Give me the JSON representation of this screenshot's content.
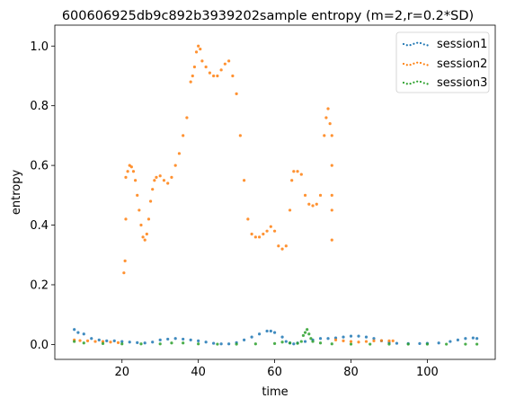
{
  "chart_data": {
    "type": "scatter",
    "title": "600606925db9c892b3939202sample entropy (m=2,r=0.2*SD)",
    "xlabel": "time",
    "ylabel": "entropy",
    "xlim": [
      2.4,
      117.8
    ],
    "ylim": [
      -0.05,
      1.07
    ],
    "xticks": [
      20,
      40,
      60,
      80,
      100
    ],
    "yticks": [
      0.0,
      0.2,
      0.4,
      0.6,
      0.8,
      1.0
    ],
    "xtick_labels": [
      "20",
      "40",
      "60",
      "80",
      "100"
    ],
    "ytick_labels": [
      "0.0",
      "0.2",
      "0.4",
      "0.6",
      "0.8",
      "1.0"
    ],
    "grid": false,
    "legend_position": "top-right",
    "series": [
      {
        "name": "session1",
        "color": "#1f77b4",
        "points": [
          [
            7.5,
            0.05
          ],
          [
            8.5,
            0.04
          ],
          [
            10,
            0.035
          ],
          [
            12,
            0.02
          ],
          [
            14,
            0.015
          ],
          [
            16,
            0.012
          ],
          [
            18,
            0.012
          ],
          [
            20,
            0.01
          ],
          [
            22,
            0.008
          ],
          [
            24,
            0.006
          ],
          [
            26,
            0.005
          ],
          [
            28,
            0.008
          ],
          [
            30,
            0.015
          ],
          [
            32,
            0.018
          ],
          [
            34,
            0.02
          ],
          [
            36,
            0.018
          ],
          [
            38,
            0.015
          ],
          [
            40,
            0.012
          ],
          [
            42,
            0.008
          ],
          [
            44,
            0.004
          ],
          [
            46,
            0.002
          ],
          [
            48,
            0.002
          ],
          [
            50,
            0.006
          ],
          [
            52,
            0.015
          ],
          [
            54,
            0.025
          ],
          [
            56,
            0.035
          ],
          [
            58,
            0.045
          ],
          [
            59,
            0.045
          ],
          [
            60,
            0.04
          ],
          [
            62,
            0.025
          ],
          [
            63,
            0.01
          ],
          [
            64,
            0.005
          ],
          [
            65,
            0.002
          ],
          [
            66,
            0.005
          ],
          [
            68,
            0.01
          ],
          [
            70,
            0.015
          ],
          [
            72,
            0.02
          ],
          [
            74,
            0.02
          ],
          [
            76,
            0.022
          ],
          [
            78,
            0.025
          ],
          [
            80,
            0.028
          ],
          [
            82,
            0.028
          ],
          [
            84,
            0.025
          ],
          [
            86,
            0.02
          ],
          [
            88,
            0.012
          ],
          [
            90,
            0.006
          ],
          [
            92,
            0.004
          ],
          [
            95,
            0.003
          ],
          [
            98,
            0.003
          ],
          [
            100,
            0.004
          ],
          [
            103,
            0.005
          ],
          [
            106,
            0.01
          ],
          [
            108,
            0.015
          ],
          [
            110,
            0.02
          ],
          [
            112,
            0.022
          ],
          [
            113,
            0.02
          ]
        ]
      },
      {
        "name": "session2",
        "color": "#ff7f0e",
        "points": [
          [
            7.5,
            0.015
          ],
          [
            9,
            0.013
          ],
          [
            11,
            0.012
          ],
          [
            13,
            0.01
          ],
          [
            15,
            0.01
          ],
          [
            17,
            0.008
          ],
          [
            19,
            0.006
          ],
          [
            20.5,
            0.24
          ],
          [
            20.8,
            0.28
          ],
          [
            21,
            0.42
          ],
          [
            21,
            0.56
          ],
          [
            21.5,
            0.58
          ],
          [
            22,
            0.6
          ],
          [
            22.5,
            0.595
          ],
          [
            23,
            0.58
          ],
          [
            23.5,
            0.55
          ],
          [
            24,
            0.5
          ],
          [
            24.5,
            0.45
          ],
          [
            25,
            0.4
          ],
          [
            25.5,
            0.36
          ],
          [
            26,
            0.35
          ],
          [
            26.5,
            0.37
          ],
          [
            27,
            0.42
          ],
          [
            27.5,
            0.48
          ],
          [
            28,
            0.52
          ],
          [
            28.5,
            0.55
          ],
          [
            29,
            0.56
          ],
          [
            30,
            0.565
          ],
          [
            31,
            0.55
          ],
          [
            32,
            0.54
          ],
          [
            33,
            0.56
          ],
          [
            34,
            0.6
          ],
          [
            35,
            0.64
          ],
          [
            36,
            0.7
          ],
          [
            37,
            0.76
          ],
          [
            38,
            0.88
          ],
          [
            38.5,
            0.9
          ],
          [
            39,
            0.93
          ],
          [
            39.5,
            0.98
          ],
          [
            40,
            1.0
          ],
          [
            40.5,
            0.99
          ],
          [
            41,
            0.95
          ],
          [
            42,
            0.93
          ],
          [
            43,
            0.91
          ],
          [
            44,
            0.9
          ],
          [
            45,
            0.9
          ],
          [
            46,
            0.92
          ],
          [
            47,
            0.94
          ],
          [
            48,
            0.95
          ],
          [
            49,
            0.9
          ],
          [
            50,
            0.84
          ],
          [
            51,
            0.7
          ],
          [
            52,
            0.55
          ],
          [
            53,
            0.42
          ],
          [
            54,
            0.37
          ],
          [
            55,
            0.36
          ],
          [
            56,
            0.36
          ],
          [
            57,
            0.37
          ],
          [
            58,
            0.38
          ],
          [
            59,
            0.395
          ],
          [
            60,
            0.38
          ],
          [
            61,
            0.33
          ],
          [
            62,
            0.32
          ],
          [
            63,
            0.33
          ],
          [
            64,
            0.45
          ],
          [
            64.5,
            0.55
          ],
          [
            65,
            0.58
          ],
          [
            66,
            0.58
          ],
          [
            67,
            0.57
          ],
          [
            68,
            0.5
          ],
          [
            69,
            0.47
          ],
          [
            70,
            0.465
          ],
          [
            71,
            0.47
          ],
          [
            72,
            0.5
          ],
          [
            73,
            0.7
          ],
          [
            73.5,
            0.76
          ],
          [
            74,
            0.79
          ],
          [
            74.5,
            0.74
          ],
          [
            75,
            0.7
          ],
          [
            75,
            0.6
          ],
          [
            75,
            0.5
          ],
          [
            75,
            0.45
          ],
          [
            75,
            0.35
          ],
          [
            76,
            0.015
          ],
          [
            78,
            0.012
          ],
          [
            80,
            0.01
          ],
          [
            82,
            0.008
          ],
          [
            84,
            0.01
          ],
          [
            86,
            0.012
          ],
          [
            88,
            0.013
          ],
          [
            90,
            0.012
          ],
          [
            91,
            0.012
          ]
        ]
      },
      {
        "name": "session3",
        "color": "#2ca02c",
        "points": [
          [
            7.5,
            0.01
          ],
          [
            10,
            0.005
          ],
          [
            15,
            0.003
          ],
          [
            20,
            0.002
          ],
          [
            25,
            0.002
          ],
          [
            30,
            0.002
          ],
          [
            33,
            0.005
          ],
          [
            36,
            0.005
          ],
          [
            40,
            0.002
          ],
          [
            45,
            0.001
          ],
          [
            50,
            0.001
          ],
          [
            55,
            0.002
          ],
          [
            60,
            0.003
          ],
          [
            62,
            0.008
          ],
          [
            64,
            0.005
          ],
          [
            66,
            0.004
          ],
          [
            67,
            0.01
          ],
          [
            67.5,
            0.03
          ],
          [
            68,
            0.04
          ],
          [
            68.5,
            0.05
          ],
          [
            69,
            0.035
          ],
          [
            69.5,
            0.02
          ],
          [
            70,
            0.01
          ],
          [
            72,
            0.005
          ],
          [
            75,
            0.002
          ],
          [
            80,
            0.001
          ],
          [
            85,
            0.001
          ],
          [
            90,
            0.001
          ],
          [
            95,
            0.001
          ],
          [
            100,
            0.001
          ],
          [
            105,
            0.001
          ],
          [
            110,
            0.001
          ],
          [
            113,
            0.001
          ]
        ]
      }
    ]
  }
}
